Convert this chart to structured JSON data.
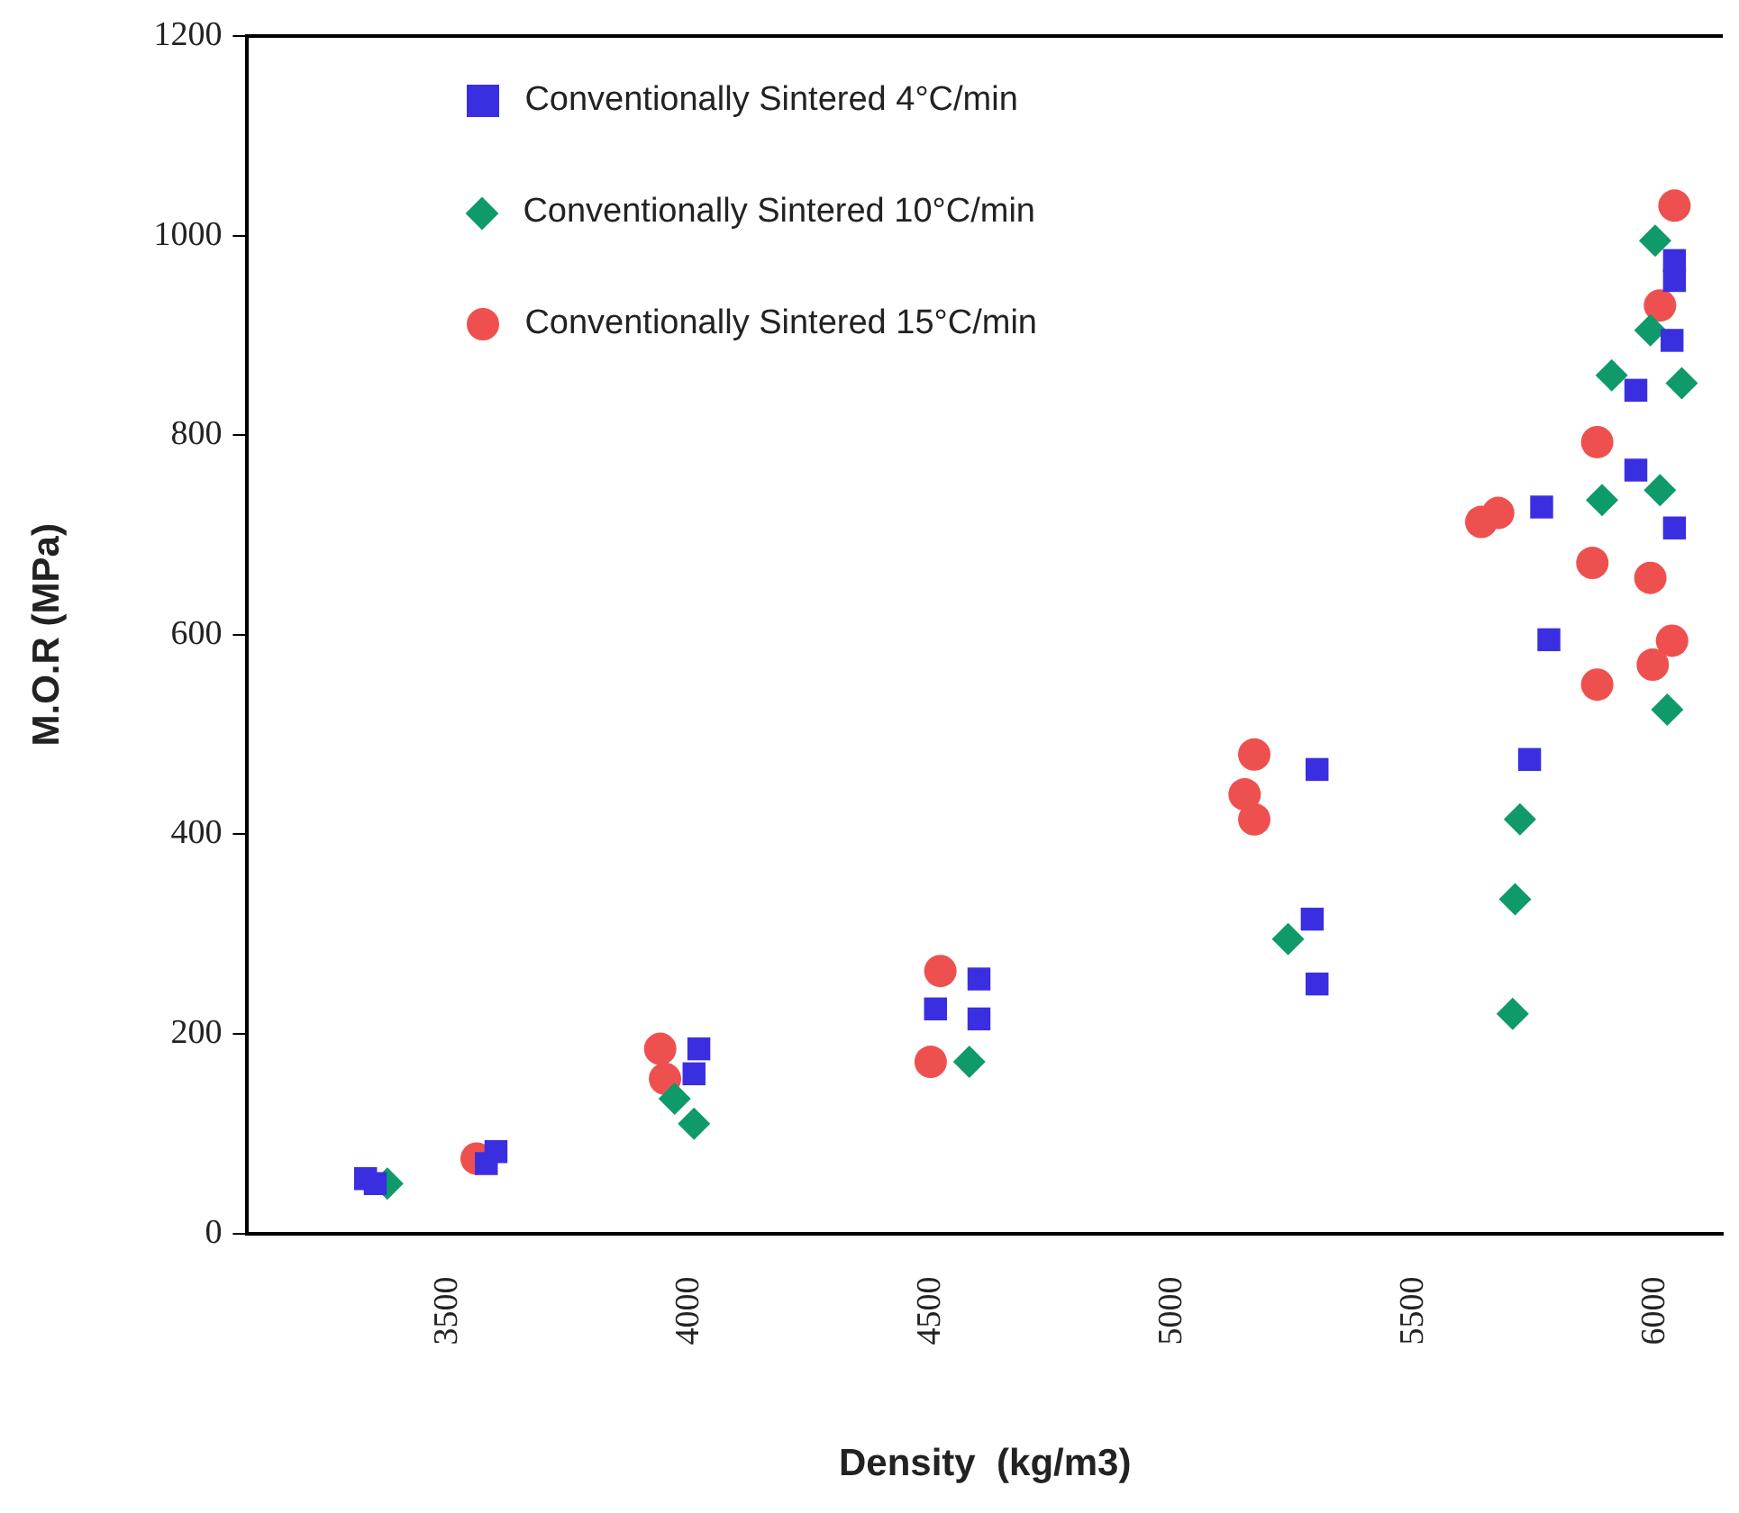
{
  "chart_data": {
    "type": "scatter",
    "xlabel": "Density  (kg/m3)",
    "ylabel": "M.O.R (MPa)",
    "xlim": [
      3085,
      6140
    ],
    "xticks": [
      3500,
      4000,
      4500,
      5000,
      5500,
      6000
    ],
    "ylim": [
      0,
      1200
    ],
    "yticks": [
      0,
      200,
      400,
      600,
      800,
      1000,
      1200
    ],
    "grid": false,
    "legend": "top left",
    "series": [
      {
        "name": "Conventionally Sintered 4°C/min",
        "color": "#3a2fe0",
        "marker": "square",
        "x": [
          3330,
          3350,
          3580,
          3600,
          4020,
          4010,
          4600,
          4600,
          4510,
          5300,
          5290,
          5300,
          6040,
          6040,
          6035,
          5960,
          5960,
          5765,
          6040,
          5780,
          5740
        ],
        "values": [
          55,
          50,
          70,
          82,
          185,
          160,
          255,
          215,
          225,
          465,
          315,
          250,
          975,
          955,
          895,
          845,
          765,
          728,
          707,
          595,
          475
        ]
      },
      {
        "name": "Conventionally Sintered 10°C/min",
        "color": "#0f9a6a",
        "marker": "diamond",
        "x": [
          3375,
          3970,
          4010,
          4580,
          5240,
          6000,
          5990,
          6055,
          5910,
          5890,
          6010,
          6025,
          5720,
          5710,
          5705
        ],
        "values": [
          50,
          135,
          110,
          172,
          295,
          995,
          905,
          852,
          860,
          735,
          745,
          525,
          415,
          335,
          220
        ]
      },
      {
        "name": "Conventionally Sintered 15°C/min",
        "color": "#ee5050",
        "marker": "circle",
        "x": [
          3560,
          3940,
          3950,
          4520,
          4500,
          5170,
          5150,
          5170,
          6040,
          6010,
          5880,
          5640,
          5675,
          5870,
          5990,
          6035,
          5995,
          5880
        ],
        "values": [
          75,
          185,
          155,
          263,
          172,
          480,
          440,
          415,
          1030,
          930,
          793,
          713,
          722,
          672,
          657,
          594,
          570,
          550
        ]
      }
    ]
  }
}
